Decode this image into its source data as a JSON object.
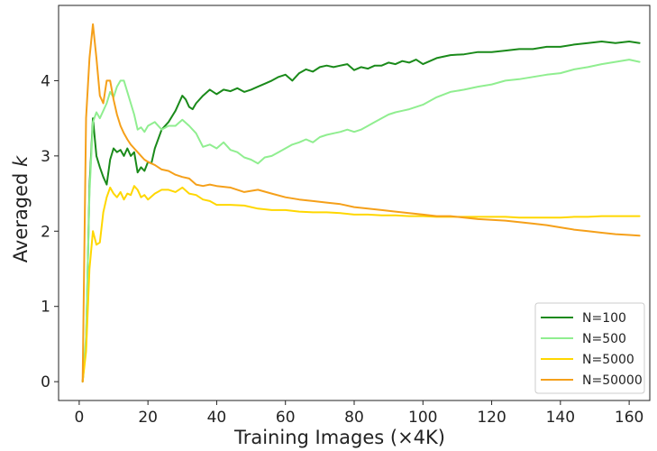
{
  "chart_data": {
    "type": "line",
    "title": "",
    "xlabel": "Training Images (×4K)",
    "ylabel_main": "Averaged ",
    "ylabel_var": "k",
    "xlim": [
      -6,
      166
    ],
    "ylim": [
      -0.25,
      5.0
    ],
    "xticks": [
      0,
      20,
      40,
      60,
      80,
      100,
      120,
      140,
      160
    ],
    "yticks": [
      0,
      1,
      2,
      3,
      4
    ],
    "grid": false,
    "legend_position": "lower-right",
    "series": [
      {
        "name": "N=100",
        "color": "#1a8a1a",
        "x": [
          1,
          2,
          3,
          4,
          5,
          6,
          7,
          8,
          9,
          10,
          11,
          12,
          13,
          14,
          15,
          16,
          17,
          18,
          19,
          20,
          21,
          22,
          24,
          26,
          28,
          30,
          31,
          32,
          33,
          34,
          36,
          38,
          40,
          42,
          44,
          46,
          48,
          50,
          52,
          54,
          56,
          58,
          60,
          62,
          64,
          66,
          68,
          70,
          72,
          74,
          76,
          78,
          80,
          82,
          84,
          86,
          88,
          90,
          92,
          94,
          96,
          98,
          100,
          104,
          108,
          112,
          116,
          120,
          124,
          128,
          132,
          136,
          140,
          144,
          148,
          152,
          156,
          160,
          163
        ],
        "values": [
          0.0,
          0.5,
          2.6,
          3.5,
          3.0,
          2.85,
          2.72,
          2.62,
          2.95,
          3.1,
          3.05,
          3.08,
          3.0,
          3.1,
          3.0,
          3.05,
          2.78,
          2.85,
          2.8,
          2.92,
          2.9,
          3.1,
          3.35,
          3.45,
          3.6,
          3.8,
          3.75,
          3.65,
          3.62,
          3.7,
          3.8,
          3.88,
          3.82,
          3.88,
          3.86,
          3.9,
          3.85,
          3.88,
          3.92,
          3.96,
          4.0,
          4.05,
          4.08,
          4.0,
          4.1,
          4.15,
          4.12,
          4.18,
          4.2,
          4.18,
          4.2,
          4.22,
          4.14,
          4.18,
          4.16,
          4.2,
          4.2,
          4.24,
          4.22,
          4.26,
          4.24,
          4.28,
          4.22,
          4.3,
          4.34,
          4.35,
          4.38,
          4.38,
          4.4,
          4.42,
          4.42,
          4.45,
          4.45,
          4.48,
          4.5,
          4.52,
          4.5,
          4.52,
          4.5
        ]
      },
      {
        "name": "N=500",
        "color": "#90ee90",
        "x": [
          1,
          2,
          3,
          4,
          5,
          6,
          7,
          8,
          9,
          10,
          11,
          12,
          13,
          14,
          15,
          16,
          17,
          18,
          19,
          20,
          22,
          24,
          26,
          28,
          30,
          32,
          34,
          36,
          38,
          40,
          42,
          44,
          46,
          48,
          50,
          52,
          54,
          56,
          58,
          60,
          62,
          64,
          66,
          68,
          70,
          72,
          74,
          76,
          78,
          80,
          82,
          84,
          86,
          88,
          90,
          92,
          94,
          96,
          98,
          100,
          104,
          108,
          112,
          116,
          120,
          124,
          128,
          132,
          136,
          140,
          144,
          148,
          152,
          156,
          160,
          163
        ],
        "values": [
          0.0,
          0.6,
          2.5,
          3.45,
          3.58,
          3.5,
          3.6,
          3.7,
          3.85,
          3.78,
          3.92,
          4.0,
          4.0,
          3.85,
          3.7,
          3.55,
          3.35,
          3.38,
          3.32,
          3.4,
          3.45,
          3.35,
          3.4,
          3.4,
          3.48,
          3.4,
          3.3,
          3.12,
          3.15,
          3.1,
          3.18,
          3.08,
          3.05,
          2.98,
          2.95,
          2.9,
          2.98,
          3.0,
          3.05,
          3.1,
          3.15,
          3.18,
          3.22,
          3.18,
          3.25,
          3.28,
          3.3,
          3.32,
          3.35,
          3.32,
          3.35,
          3.4,
          3.45,
          3.5,
          3.55,
          3.58,
          3.6,
          3.62,
          3.65,
          3.68,
          3.78,
          3.85,
          3.88,
          3.92,
          3.95,
          4.0,
          4.02,
          4.05,
          4.08,
          4.1,
          4.15,
          4.18,
          4.22,
          4.25,
          4.28,
          4.25
        ]
      },
      {
        "name": "N=5000",
        "color": "#ffd700",
        "x": [
          1,
          2,
          3,
          4,
          5,
          6,
          7,
          8,
          9,
          10,
          11,
          12,
          13,
          14,
          15,
          16,
          17,
          18,
          19,
          20,
          22,
          24,
          26,
          28,
          30,
          32,
          34,
          36,
          38,
          40,
          44,
          48,
          52,
          56,
          60,
          64,
          68,
          72,
          76,
          80,
          84,
          88,
          92,
          96,
          100,
          104,
          108,
          112,
          116,
          120,
          124,
          128,
          132,
          136,
          140,
          144,
          148,
          152,
          156,
          160,
          163
        ],
        "values": [
          0.0,
          0.4,
          1.5,
          2.0,
          1.82,
          1.85,
          2.25,
          2.45,
          2.58,
          2.5,
          2.45,
          2.52,
          2.42,
          2.5,
          2.48,
          2.6,
          2.55,
          2.45,
          2.48,
          2.42,
          2.5,
          2.55,
          2.55,
          2.52,
          2.58,
          2.5,
          2.48,
          2.42,
          2.4,
          2.35,
          2.35,
          2.34,
          2.3,
          2.28,
          2.28,
          2.26,
          2.25,
          2.25,
          2.24,
          2.22,
          2.22,
          2.21,
          2.21,
          2.2,
          2.2,
          2.19,
          2.19,
          2.19,
          2.19,
          2.19,
          2.19,
          2.18,
          2.18,
          2.18,
          2.18,
          2.19,
          2.19,
          2.2,
          2.2,
          2.2,
          2.2
        ]
      },
      {
        "name": "N=50000",
        "color": "#f5a01a",
        "x": [
          1,
          2,
          3,
          4,
          5,
          6,
          7,
          8,
          9,
          10,
          11,
          12,
          13,
          14,
          15,
          16,
          17,
          18,
          19,
          20,
          22,
          24,
          26,
          28,
          30,
          32,
          34,
          36,
          38,
          40,
          44,
          48,
          52,
          56,
          60,
          64,
          68,
          72,
          76,
          80,
          84,
          88,
          92,
          96,
          100,
          104,
          108,
          112,
          116,
          120,
          124,
          128,
          132,
          136,
          140,
          144,
          148,
          152,
          156,
          160,
          163
        ],
        "values": [
          0.0,
          3.5,
          4.3,
          4.75,
          4.3,
          3.8,
          3.7,
          4.0,
          4.0,
          3.75,
          3.55,
          3.4,
          3.3,
          3.22,
          3.15,
          3.1,
          3.05,
          3.0,
          2.95,
          2.92,
          2.88,
          2.82,
          2.8,
          2.75,
          2.72,
          2.7,
          2.62,
          2.6,
          2.62,
          2.6,
          2.58,
          2.52,
          2.55,
          2.5,
          2.45,
          2.42,
          2.4,
          2.38,
          2.36,
          2.32,
          2.3,
          2.28,
          2.26,
          2.24,
          2.22,
          2.2,
          2.2,
          2.18,
          2.16,
          2.15,
          2.14,
          2.12,
          2.1,
          2.08,
          2.05,
          2.02,
          2.0,
          1.98,
          1.96,
          1.95,
          1.94
        ]
      }
    ]
  }
}
